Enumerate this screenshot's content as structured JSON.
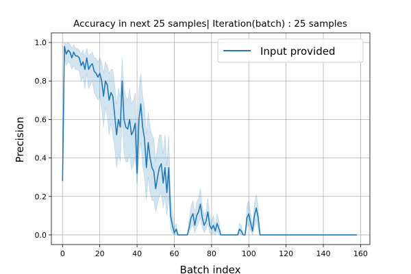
{
  "chart_data": {
    "type": "line",
    "title": "Accuracy in next 25 samples| Iteration(batch) : 25 samples",
    "xlabel": "Batch index",
    "ylabel": "Precision",
    "xlim": [
      -6,
      165
    ],
    "ylim": [
      -0.05,
      1.05
    ],
    "xticks": [
      0,
      20,
      40,
      60,
      80,
      100,
      120,
      140,
      160
    ],
    "yticks": [
      0.0,
      0.2,
      0.4,
      0.6,
      0.8,
      1.0
    ],
    "xtick_labels": [
      "0",
      "20",
      "40",
      "60",
      "80",
      "100",
      "120",
      "140",
      "160"
    ],
    "ytick_labels": [
      "0.0",
      "0.2",
      "0.4",
      "0.6",
      "0.8",
      "1.0"
    ],
    "grid": true,
    "legend_position": "top-right",
    "line_color": "#1f77b4",
    "band_color": "#1f77b4",
    "series": [
      {
        "name": "Input provided",
        "x": [
          0,
          1,
          2,
          3,
          4,
          5,
          6,
          7,
          8,
          9,
          10,
          11,
          12,
          13,
          14,
          15,
          16,
          17,
          18,
          19,
          20,
          21,
          22,
          23,
          24,
          25,
          26,
          27,
          28,
          29,
          30,
          31,
          32,
          33,
          34,
          35,
          36,
          37,
          38,
          39,
          40,
          41,
          42,
          43,
          44,
          45,
          46,
          47,
          48,
          49,
          50,
          51,
          52,
          53,
          54,
          55,
          56,
          57,
          58,
          59,
          60,
          61,
          62,
          63,
          64,
          65,
          66,
          67,
          68,
          69,
          70,
          71,
          72,
          73,
          74,
          75,
          76,
          77,
          78,
          79,
          80,
          81,
          82,
          83,
          84,
          85,
          86,
          87,
          88,
          89,
          90,
          91,
          92,
          93,
          94,
          95,
          96,
          97,
          98,
          99,
          100,
          101,
          102,
          103,
          104,
          105,
          106,
          107,
          108,
          110,
          120,
          130,
          140,
          150,
          158
        ],
        "y": [
          0.28,
          0.98,
          0.94,
          0.96,
          0.95,
          0.92,
          0.95,
          0.93,
          0.93,
          0.92,
          0.88,
          0.9,
          0.86,
          0.92,
          0.86,
          0.88,
          0.89,
          0.85,
          0.84,
          0.82,
          0.84,
          0.8,
          0.72,
          0.8,
          0.78,
          0.7,
          0.74,
          0.72,
          0.62,
          0.52,
          0.6,
          0.56,
          0.8,
          0.6,
          0.56,
          0.55,
          0.6,
          0.52,
          0.54,
          0.58,
          0.32,
          0.6,
          0.68,
          0.56,
          0.5,
          0.35,
          0.48,
          0.4,
          0.35,
          0.33,
          0.24,
          0.3,
          0.35,
          0.37,
          0.27,
          0.35,
          0.22,
          0.35,
          0.1,
          0.05,
          0.01,
          0.03,
          0.0,
          0.0,
          0.0,
          0.0,
          0.0,
          0.0,
          0.04,
          0.09,
          0.11,
          0.05,
          0.1,
          0.12,
          0.16,
          0.09,
          0.05,
          0.07,
          0.12,
          0.05,
          0.03,
          0.05,
          0.02,
          0.06,
          0.03,
          0.0,
          0.0,
          0.0,
          0.0,
          0.0,
          0.0,
          0.0,
          0.0,
          0.0,
          0.0,
          0.03,
          0.02,
          0.0,
          0.0,
          0.09,
          0.11,
          0.06,
          0.02,
          0.1,
          0.14,
          0.09,
          0.0,
          0.0,
          0.0,
          0.0,
          0.0,
          0.0,
          0.0,
          0.0,
          0.0
        ],
        "lower": [
          0.28,
          0.92,
          0.88,
          0.9,
          0.89,
          0.86,
          0.88,
          0.86,
          0.86,
          0.85,
          0.8,
          0.82,
          0.76,
          0.84,
          0.76,
          0.78,
          0.8,
          0.74,
          0.72,
          0.7,
          0.72,
          0.66,
          0.56,
          0.66,
          0.62,
          0.52,
          0.58,
          0.52,
          0.45,
          0.35,
          0.42,
          0.38,
          0.62,
          0.42,
          0.38,
          0.38,
          0.42,
          0.34,
          0.36,
          0.4,
          0.26,
          0.4,
          0.48,
          0.36,
          0.3,
          0.18,
          0.3,
          0.22,
          0.18,
          0.18,
          0.12,
          0.16,
          0.2,
          0.22,
          0.14,
          0.2,
          0.1,
          0.2,
          0.03,
          0.01,
          0.0,
          0.0,
          0.0,
          0.0,
          0.0,
          0.0,
          0.0,
          0.0,
          0.01,
          0.04,
          0.05,
          0.01,
          0.04,
          0.06,
          0.09,
          0.04,
          0.01,
          0.03,
          0.06,
          0.01,
          0.0,
          0.01,
          0.0,
          0.02,
          0.0,
          0.0,
          0.0,
          0.0,
          0.0,
          0.0,
          0.0,
          0.0,
          0.0,
          0.0,
          0.0,
          0.01,
          0.0,
          0.0,
          0.0,
          0.04,
          0.05,
          0.02,
          0.0,
          0.04,
          0.08,
          0.03,
          0.0,
          0.0,
          0.0,
          0.0,
          0.0,
          0.0,
          0.0,
          0.0,
          0.0
        ],
        "upper": [
          0.28,
          1.0,
          0.99,
          1.0,
          0.99,
          0.97,
          0.99,
          0.97,
          0.97,
          0.96,
          0.94,
          0.96,
          0.93,
          0.97,
          0.93,
          0.94,
          0.95,
          0.92,
          0.92,
          0.9,
          0.92,
          0.9,
          0.84,
          0.9,
          0.88,
          0.84,
          0.86,
          0.86,
          0.78,
          0.68,
          0.76,
          0.72,
          0.92,
          0.76,
          0.72,
          0.7,
          0.76,
          0.68,
          0.7,
          0.74,
          0.48,
          0.76,
          0.84,
          0.72,
          0.66,
          0.52,
          0.64,
          0.56,
          0.52,
          0.5,
          0.38,
          0.46,
          0.52,
          0.52,
          0.42,
          0.52,
          0.36,
          0.52,
          0.2,
          0.12,
          0.04,
          0.06,
          0.0,
          0.0,
          0.0,
          0.0,
          0.0,
          0.0,
          0.08,
          0.15,
          0.18,
          0.1,
          0.17,
          0.19,
          0.24,
          0.15,
          0.1,
          0.12,
          0.19,
          0.1,
          0.07,
          0.1,
          0.05,
          0.11,
          0.07,
          0.0,
          0.0,
          0.0,
          0.0,
          0.0,
          0.0,
          0.0,
          0.0,
          0.0,
          0.0,
          0.06,
          0.05,
          0.0,
          0.0,
          0.15,
          0.18,
          0.11,
          0.05,
          0.16,
          0.21,
          0.15,
          0.0,
          0.0,
          0.0,
          0.0,
          0.0,
          0.0,
          0.0,
          0.0,
          0.0
        ]
      }
    ]
  }
}
